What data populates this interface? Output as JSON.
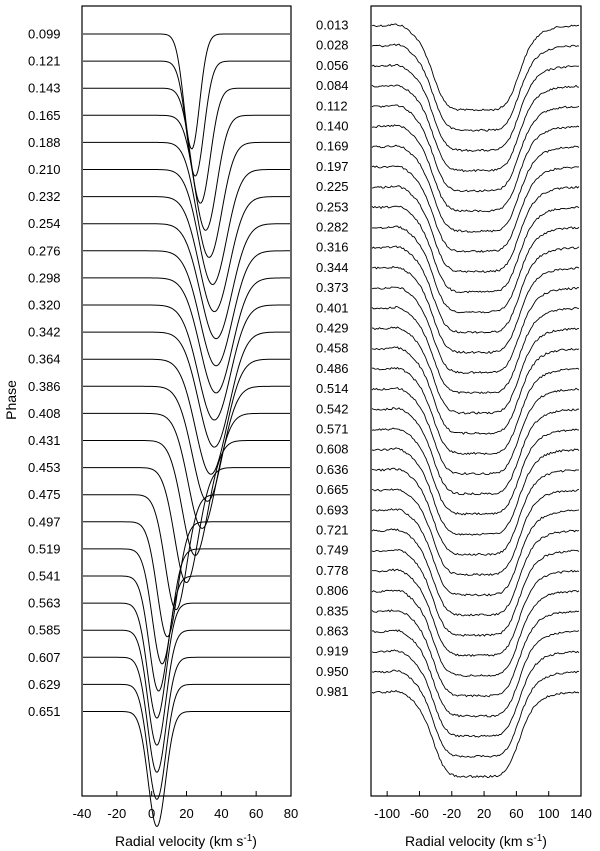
{
  "figure": {
    "ylabel": "Phase"
  },
  "chart_data": [
    {
      "type": "line",
      "xlabel": "Radial velocity (km s",
      "xlabel_sup": "-1",
      "xlabel_end": ")",
      "xlim": [
        -40,
        80
      ],
      "xticks": [
        -40,
        -20,
        0,
        20,
        40,
        60,
        80
      ],
      "xtick_labels": [
        "-40",
        "-20",
        "0",
        "20",
        "40",
        "60",
        "80"
      ],
      "profile_shape": "gaussian",
      "series": [
        {
          "phase": "0.099",
          "center": 23,
          "depth": 1.0,
          "width": 4.5
        },
        {
          "phase": "0.121",
          "center": 25,
          "depth": 1.0,
          "width": 5.0
        },
        {
          "phase": "0.143",
          "center": 28,
          "depth": 1.0,
          "width": 5.6
        },
        {
          "phase": "0.165",
          "center": 31,
          "depth": 1.0,
          "width": 6.4
        },
        {
          "phase": "0.188",
          "center": 33,
          "depth": 1.0,
          "width": 7.2
        },
        {
          "phase": "0.210",
          "center": 35,
          "depth": 1.0,
          "width": 8.0
        },
        {
          "phase": "0.232",
          "center": 36,
          "depth": 1.0,
          "width": 8.6
        },
        {
          "phase": "0.254",
          "center": 37,
          "depth": 1.0,
          "width": 9.0
        },
        {
          "phase": "0.276",
          "center": 37,
          "depth": 1.0,
          "width": 9.2
        },
        {
          "phase": "0.298",
          "center": 37,
          "depth": 1.0,
          "width": 9.2
        },
        {
          "phase": "0.320",
          "center": 36,
          "depth": 1.0,
          "width": 9.2
        },
        {
          "phase": "0.342",
          "center": 36,
          "depth": 1.0,
          "width": 9.0
        },
        {
          "phase": "0.364",
          "center": 34,
          "depth": 1.0,
          "width": 8.8
        },
        {
          "phase": "0.386",
          "center": 32,
          "depth": 1.0,
          "width": 8.5
        },
        {
          "phase": "0.408",
          "center": 29,
          "depth": 1.0,
          "width": 8.0
        },
        {
          "phase": "0.431",
          "center": 25,
          "depth": 1.0,
          "width": 7.4
        },
        {
          "phase": "0.453",
          "center": 20,
          "depth": 1.0,
          "width": 6.8
        },
        {
          "phase": "0.475",
          "center": 14,
          "depth": 1.0,
          "width": 6.2
        },
        {
          "phase": "0.497",
          "center": 9,
          "depth": 1.0,
          "width": 5.8
        },
        {
          "phase": "0.519",
          "center": 6,
          "depth": 1.0,
          "width": 5.6
        },
        {
          "phase": "0.541",
          "center": 4,
          "depth": 1.0,
          "width": 5.4
        },
        {
          "phase": "0.563",
          "center": 3,
          "depth": 1.0,
          "width": 5.3
        },
        {
          "phase": "0.585",
          "center": 3,
          "depth": 1.0,
          "width": 5.2
        },
        {
          "phase": "0.607",
          "center": 3,
          "depth": 1.0,
          "width": 5.2
        },
        {
          "phase": "0.629",
          "center": 3,
          "depth": 1.0,
          "width": 5.1
        },
        {
          "phase": "0.651",
          "center": 3,
          "depth": 1.0,
          "width": 5.0
        }
      ]
    },
    {
      "type": "line",
      "xlabel": "Radial velocity (km s",
      "xlabel_sup": "-1",
      "xlabel_end": ")",
      "xlim": [
        -120,
        140
      ],
      "xticks": [
        -100,
        -60,
        -20,
        20,
        60,
        100,
        140
      ],
      "xtick_labels": [
        "-100",
        "-60",
        "-20",
        "20",
        "60",
        "100",
        "140"
      ],
      "profile_shape": "broad-flat",
      "profile_center": 10,
      "profile_halfwidth": 56,
      "series": [
        {
          "phase": "0.013"
        },
        {
          "phase": "0.028"
        },
        {
          "phase": "0.056"
        },
        {
          "phase": "0.084"
        },
        {
          "phase": "0.112"
        },
        {
          "phase": "0.140"
        },
        {
          "phase": "0.169"
        },
        {
          "phase": "0.197"
        },
        {
          "phase": "0.225"
        },
        {
          "phase": "0.253"
        },
        {
          "phase": "0.282"
        },
        {
          "phase": "0.316"
        },
        {
          "phase": "0.344"
        },
        {
          "phase": "0.373"
        },
        {
          "phase": "0.401"
        },
        {
          "phase": "0.429"
        },
        {
          "phase": "0.458"
        },
        {
          "phase": "0.486"
        },
        {
          "phase": "0.514"
        },
        {
          "phase": "0.542"
        },
        {
          "phase": "0.571"
        },
        {
          "phase": "0.608"
        },
        {
          "phase": "0.636"
        },
        {
          "phase": "0.665"
        },
        {
          "phase": "0.693"
        },
        {
          "phase": "0.721"
        },
        {
          "phase": "0.749"
        },
        {
          "phase": "0.778"
        },
        {
          "phase": "0.806"
        },
        {
          "phase": "0.835"
        },
        {
          "phase": "0.863"
        },
        {
          "phase": "0.919"
        },
        {
          "phase": "0.950"
        },
        {
          "phase": "0.981"
        }
      ]
    }
  ]
}
